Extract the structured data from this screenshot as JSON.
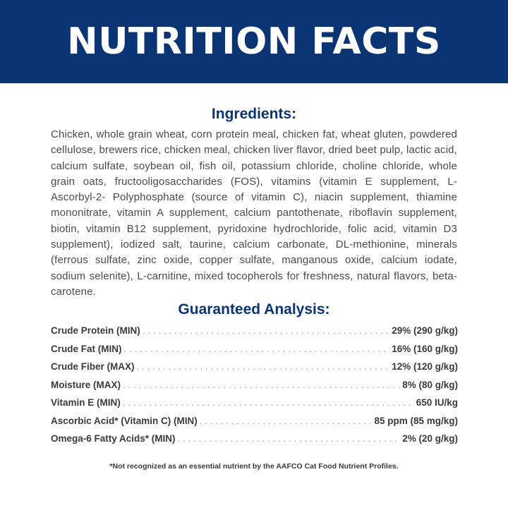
{
  "header": {
    "title": "NUTRITION FACTS"
  },
  "ingredients": {
    "heading": "Ingredients:",
    "text": "Chicken, whole grain wheat, corn protein meal, chicken fat, wheat gluten, powdered cellulose, brewers rice, chicken meal, chicken liver flavor, dried beet pulp, lactic acid, calcium sulfate, soybean oil, fish oil, potassium chloride, choline chloride, whole grain oats, fructooligosaccharides (FOS), vitamins (vitamin E supplement, L-Ascorbyl-2- Polyphosphate (source of vitamin C), niacin supplement, thiamine mononitrate, vitamin A supplement, calcium pantothenate, riboflavin supplement, biotin, vitamin B12 supplement, pyridoxine hydrochloride, folic acid, vitamin D3 supplement), iodized salt, taurine, calcium carbonate, DL-methionine, minerals (ferrous sulfate, zinc oxide, copper sulfate, manganous oxide, calcium iodate, sodium selenite), L-carnitine, mixed tocopherols for freshness, natural flavors, beta-carotene."
  },
  "analysis": {
    "heading": "Guaranteed Analysis:",
    "rows": [
      {
        "label": "Crude Protein (MIN)",
        "value": "29% (290 g/kg)"
      },
      {
        "label": "Crude Fat (MIN)",
        "value": "16% (160 g/kg)"
      },
      {
        "label": "Crude Fiber (MAX)",
        "value": "12% (120 g/kg)"
      },
      {
        "label": "Moisture (MAX)",
        "value": "8% (80 g/kg)"
      },
      {
        "label": "Vitamin E (MIN)",
        "value": "650 IU/kg"
      },
      {
        "label": "Ascorbic Acid* (Vitamin C) (MIN)",
        "value": "85 ppm (85 mg/kg)"
      },
      {
        "label": "Omega-6 Fatty Acids* (MIN)",
        "value": "2% (20 g/kg)"
      }
    ]
  },
  "footnote": "*Not recognized as an essential nutrient by the AAFCO Cat Food Nutrient Profiles.",
  "colors": {
    "brand_navy": "#0b3474",
    "text": "#4a4a4a"
  }
}
